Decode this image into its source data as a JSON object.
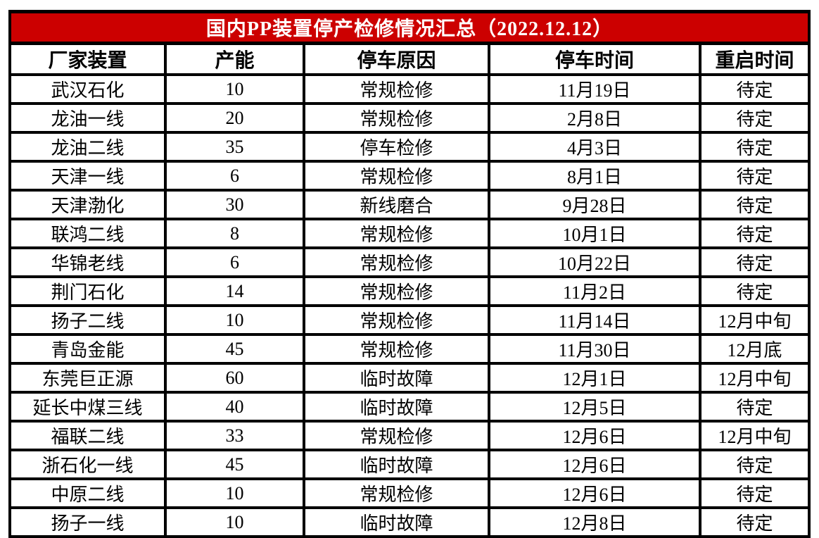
{
  "title": "国内PP装置停产检修情况汇总（2022.12.12）",
  "colors": {
    "title_bg": "#cc0000",
    "title_text": "#ffffff",
    "border": "#000000"
  },
  "table": {
    "columns": [
      "厂家装置",
      "产能",
      "停车原因",
      "停车时间",
      "重启时间"
    ],
    "rows": [
      [
        "武汉石化",
        "10",
        "常规检修",
        "11月19日",
        "待定"
      ],
      [
        "龙油一线",
        "20",
        "常规检修",
        "2月8日",
        "待定"
      ],
      [
        "龙油二线",
        "35",
        "停车检修",
        "4月3日",
        "待定"
      ],
      [
        "天津一线",
        "6",
        "常规检修",
        "8月1日",
        "待定"
      ],
      [
        "天津渤化",
        "30",
        "新线磨合",
        "9月28日",
        "待定"
      ],
      [
        "联鸿二线",
        "8",
        "常规检修",
        "10月1日",
        "待定"
      ],
      [
        "华锦老线",
        "6",
        "常规检修",
        "10月22日",
        "待定"
      ],
      [
        "荆门石化",
        "14",
        "常规检修",
        "11月2日",
        "待定"
      ],
      [
        "扬子二线",
        "10",
        "常规检修",
        "11月14日",
        "12月中旬"
      ],
      [
        "青岛金能",
        "45",
        "常规检修",
        "11月30日",
        "12月底"
      ],
      [
        "东莞巨正源",
        "60",
        "临时故障",
        "12月1日",
        "12月中旬"
      ],
      [
        "延长中煤三线",
        "40",
        "临时故障",
        "12月5日",
        "待定"
      ],
      [
        "福联二线",
        "33",
        "常规检修",
        "12月6日",
        "12月中旬"
      ],
      [
        "浙石化一线",
        "45",
        "临时故障",
        "12月6日",
        "待定"
      ],
      [
        "中原二线",
        "10",
        "常规检修",
        "12月6日",
        "待定"
      ],
      [
        "扬子一线",
        "10",
        "临时故障",
        "12月8日",
        "待定"
      ]
    ]
  }
}
